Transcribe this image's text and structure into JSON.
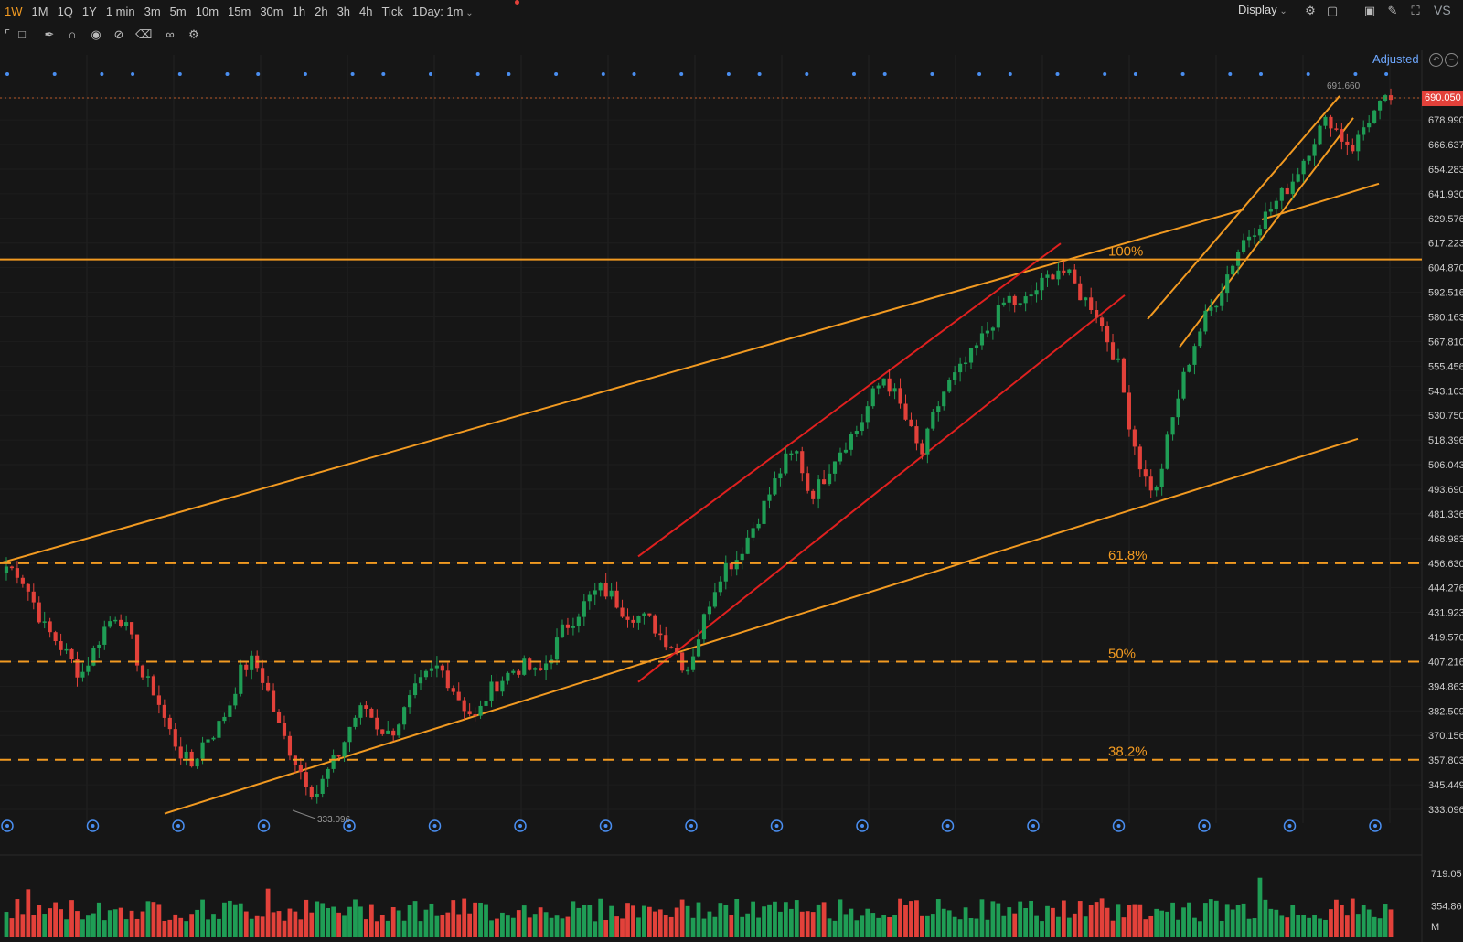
{
  "toolbar": {
    "timeframes": [
      "1W",
      "1M",
      "1Q",
      "1Y",
      "1 min",
      "3m",
      "5m",
      "10m",
      "15m",
      "30m",
      "1h",
      "2h",
      "3h",
      "4h",
      "Tick",
      "1Day: 1m"
    ],
    "active_timeframe": "1W",
    "display_label": "Display",
    "vs_label": "VS",
    "adjusted_label": "Adjusted"
  },
  "colors": {
    "up": "#1f9d55",
    "down": "#e2413a",
    "trend_orange": "#f29a21",
    "channel_red": "#e0201f",
    "background": "#161616",
    "marker_blue": "#4a8ef0"
  },
  "icons": {
    "top_right": [
      "gear-icon",
      "layout-icon",
      "camera-icon",
      "pen-icon",
      "expand-icon"
    ],
    "drawing_tools": [
      "crop-icon",
      "comment-icon",
      "pencil-icon",
      "magnet-icon",
      "eye-icon",
      "hide-icon",
      "trash-icon",
      "link-icon",
      "settings-icon"
    ]
  },
  "chart_data": {
    "type": "candlestick",
    "title": "",
    "price_axis_labels": [
      "690.050",
      "678.990",
      "666.637",
      "654.283",
      "641.930",
      "629.576",
      "617.223",
      "604.870",
      "592.516",
      "580.163",
      "567.810",
      "555.456",
      "543.103",
      "530.750",
      "518.396",
      "506.043",
      "493.690",
      "481.336",
      "468.983",
      "456.630",
      "444.276",
      "431.923",
      "419.570",
      "407.216",
      "394.863",
      "382.509",
      "370.156",
      "357.803",
      "345.449",
      "333.096"
    ],
    "ylim": [
      333.096,
      690.05
    ],
    "current_price": "690.050",
    "high_annotation": "691.660",
    "low_annotation": "333.096",
    "fibonacci_levels": [
      {
        "label": "100%",
        "value": 609
      },
      {
        "label": "61.8%",
        "value": 456.6
      },
      {
        "label": "50%",
        "value": 407.2
      },
      {
        "label": "38.2%",
        "value": 358
      }
    ],
    "price_path_waypoints": [
      455,
      452,
      440,
      425,
      418,
      410,
      400,
      412,
      425,
      432,
      420,
      400,
      392,
      375,
      362,
      355,
      368,
      373,
      385,
      403,
      408,
      395,
      375,
      362,
      350,
      340,
      352,
      362,
      378,
      385,
      375,
      370,
      380,
      392,
      400,
      405,
      395,
      385,
      378,
      392,
      398,
      403,
      405,
      400,
      410,
      423,
      430,
      438,
      444,
      440,
      432,
      430,
      428,
      420,
      415,
      402,
      420,
      440,
      455,
      458,
      470,
      482,
      495,
      508,
      512,
      490,
      498,
      510,
      518,
      525,
      540,
      550,
      540,
      525,
      510,
      530,
      545,
      552,
      560,
      570,
      580,
      590,
      585,
      592,
      598,
      605,
      600,
      590,
      585,
      570,
      555,
      522,
      500,
      492,
      520,
      545,
      565,
      580,
      590,
      605,
      618,
      625,
      632,
      640,
      648,
      660,
      672,
      680,
      670,
      665,
      678,
      685,
      690
    ],
    "volume_axis_labels": [
      "719.05",
      "354.86"
    ],
    "volume_unit": "M",
    "volume_ylim": [
      0,
      719.05
    ]
  }
}
